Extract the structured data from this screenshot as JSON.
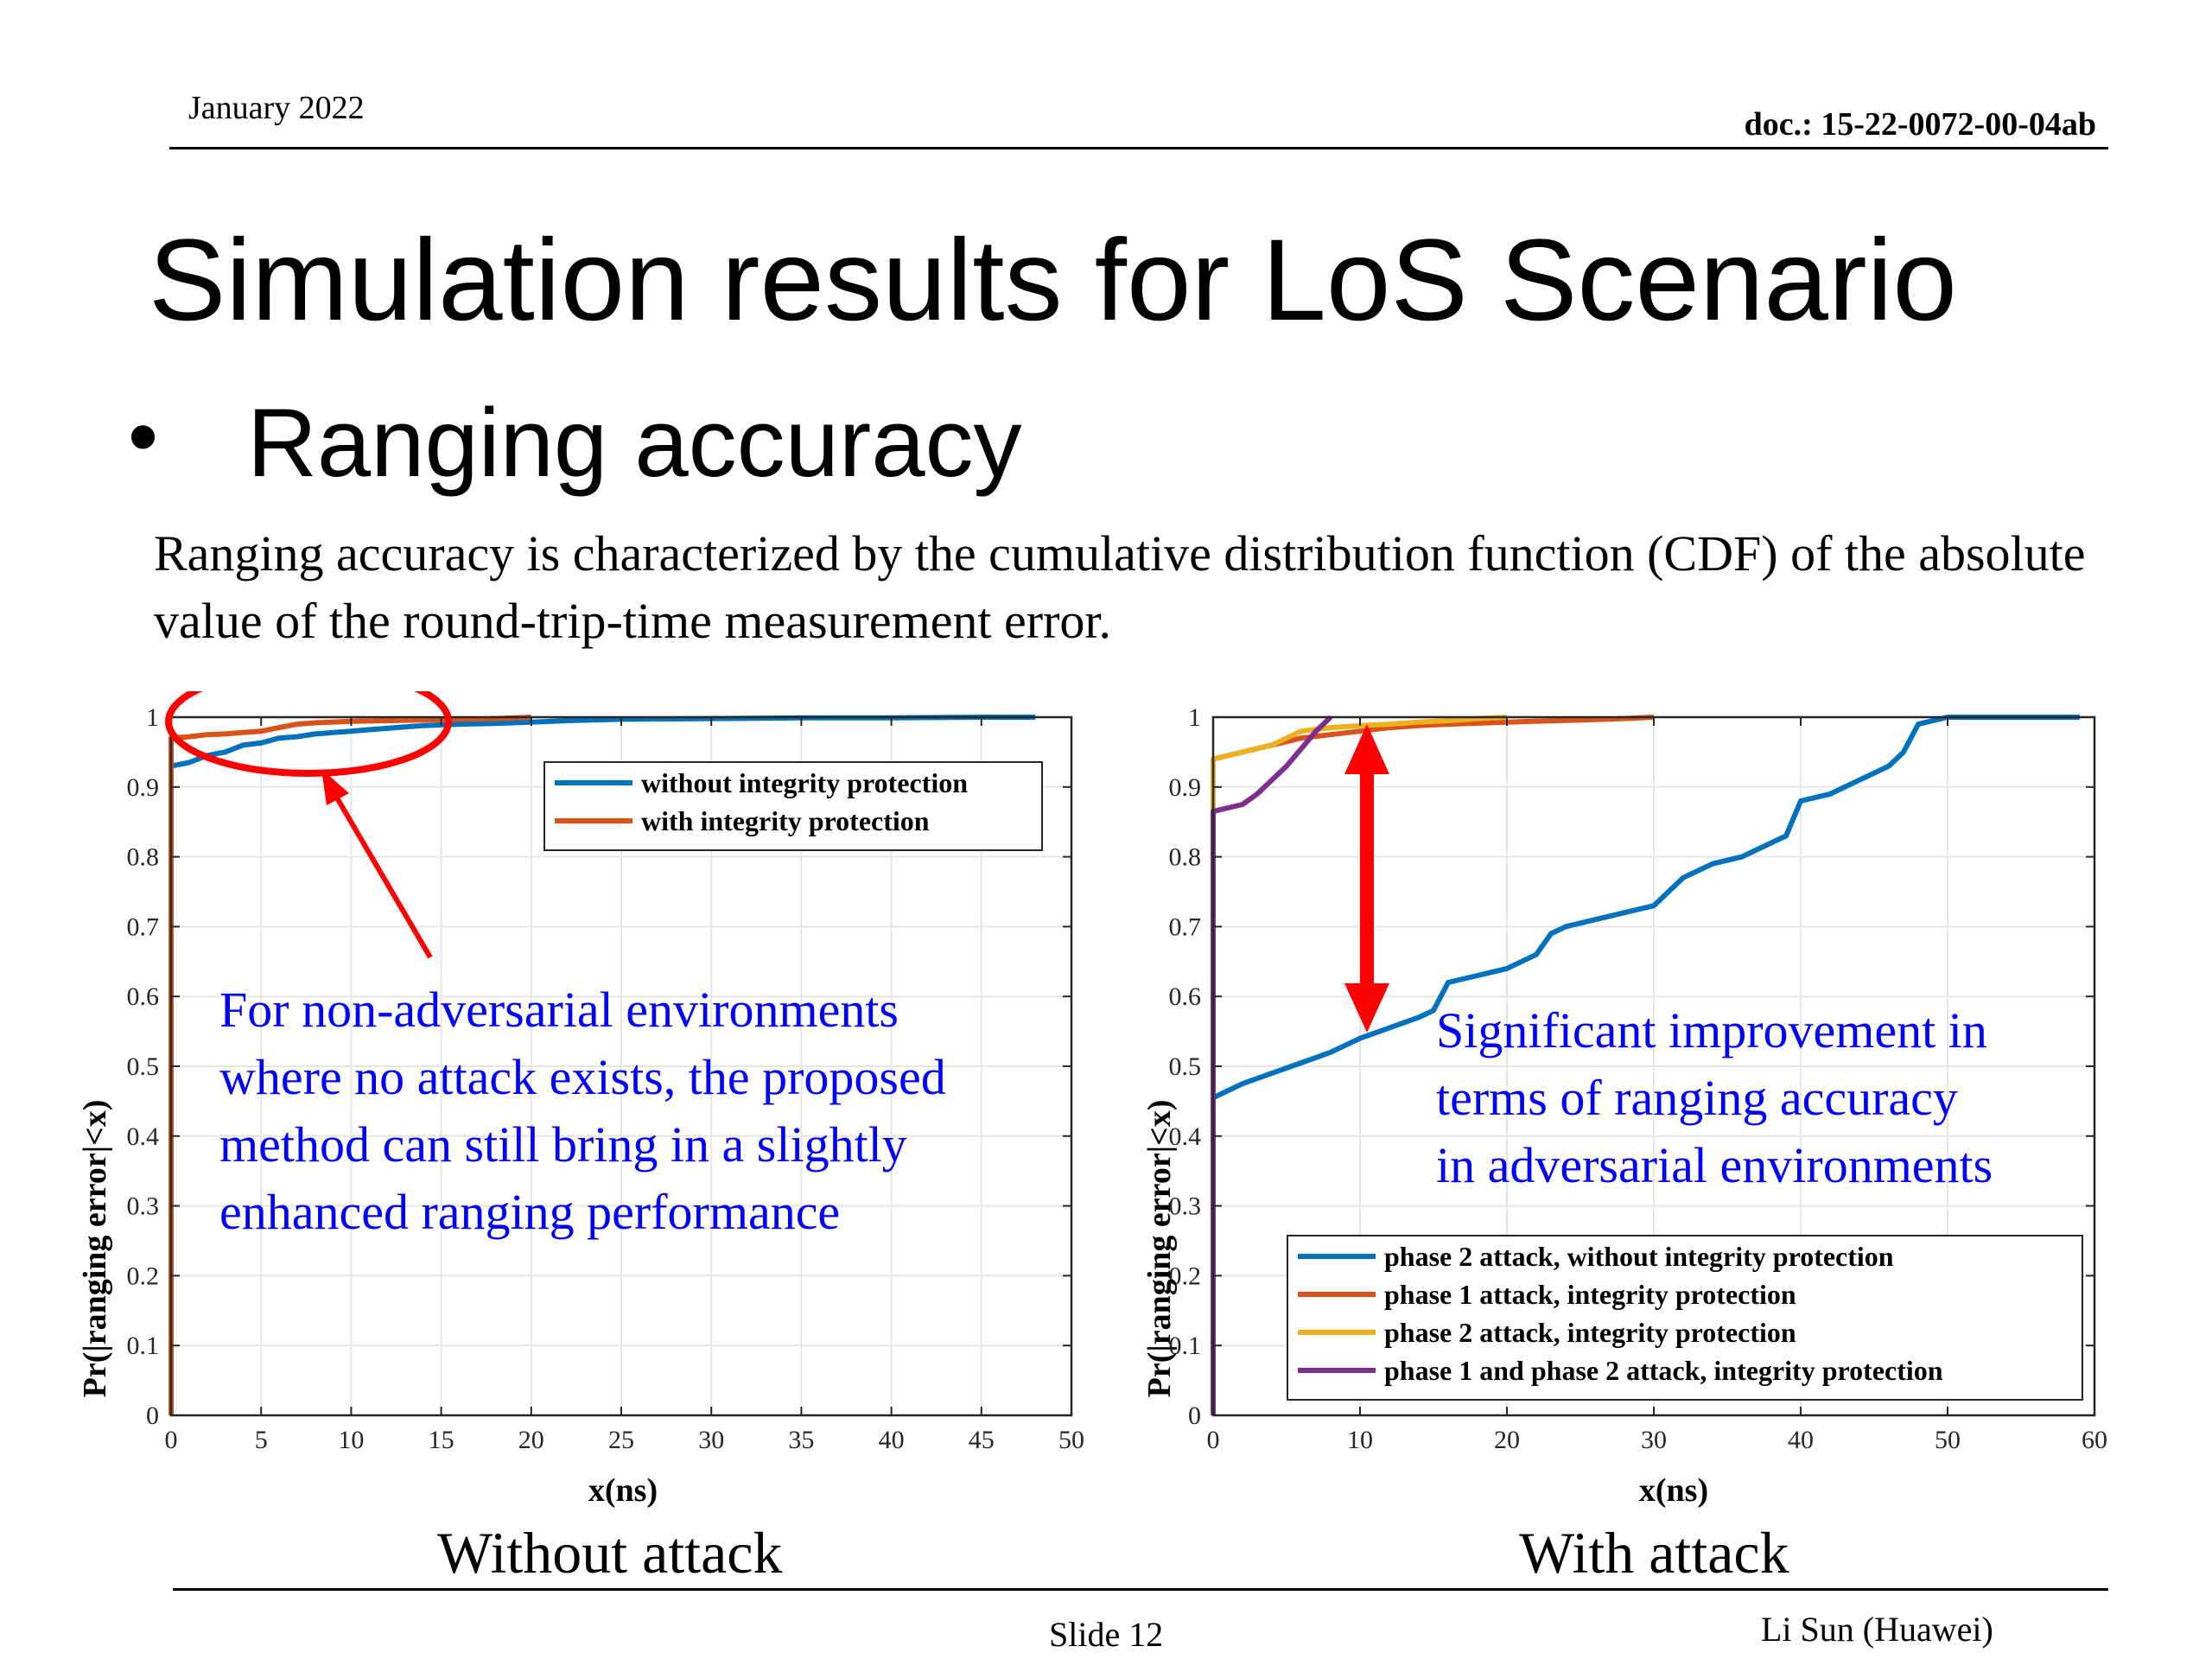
{
  "header": {
    "date": "January 2022",
    "doc": "doc.: 15-22-0072-00-04ab"
  },
  "title": "Simulation results for LoS Scenario",
  "bullet": "Ranging accuracy",
  "intro": "Ranging accuracy is characterized by the cumulative distribution function (CDF) of the absolute value of the round-trip-time measurement error.",
  "captions": {
    "left": "Without attack",
    "right": "With attack"
  },
  "footer": {
    "slide": "Slide 12",
    "author": "Li Sun (Huawei)"
  },
  "colors": {
    "blue": "#0072BD",
    "orange": "#D95319",
    "yellow": "#EDB120",
    "purple": "#7E2F8E",
    "annotation_text": "#0000FF",
    "annotation_marker": "#FF0000"
  },
  "chart_data": [
    {
      "type": "line",
      "xlabel": "x(ns)",
      "ylabel": "Pr(|ranging error|<x)",
      "xlim": [
        0,
        50
      ],
      "ylim": [
        0,
        1
      ],
      "xticks": [
        0,
        5,
        10,
        15,
        20,
        25,
        30,
        35,
        40,
        45,
        50
      ],
      "yticks": [
        0,
        0.1,
        0.2,
        0.3,
        0.4,
        0.5,
        0.6,
        0.7,
        0.8,
        0.9,
        1
      ],
      "grid": true,
      "legend_position": "top-right",
      "series": [
        {
          "name": "without integrity protection",
          "color": "#0072BD",
          "x": [
            0,
            1,
            2,
            3,
            4,
            5,
            6,
            7,
            8,
            9,
            10,
            11,
            12,
            13,
            14,
            15,
            16,
            18,
            20,
            22,
            25,
            30,
            35,
            40,
            45,
            48
          ],
          "y": [
            0.93,
            0.935,
            0.945,
            0.95,
            0.96,
            0.963,
            0.97,
            0.972,
            0.976,
            0.978,
            0.98,
            0.982,
            0.984,
            0.986,
            0.988,
            0.989,
            0.99,
            0.991,
            0.993,
            0.995,
            0.997,
            0.998,
            0.999,
            0.999,
            1.0,
            1.0
          ]
        },
        {
          "name": "with integrity protection",
          "color": "#D95319",
          "x": [
            0,
            0,
            1,
            2,
            3,
            4,
            5,
            6,
            7,
            8,
            10,
            12,
            14,
            16,
            18,
            20
          ],
          "y": [
            0,
            0.97,
            0.972,
            0.975,
            0.976,
            0.978,
            0.98,
            0.985,
            0.99,
            0.992,
            0.994,
            0.995,
            0.996,
            0.997,
            0.998,
            1.0
          ]
        }
      ],
      "annotations": {
        "text": "For non-adversarial environments where no attack exists, the proposed method can still bring in a slightly enhanced ranging performance"
      }
    },
    {
      "type": "line",
      "xlabel": "x(ns)",
      "ylabel": "Pr(|ranging error|<x)",
      "xlim": [
        0,
        60
      ],
      "ylim": [
        0,
        1
      ],
      "xticks": [
        0,
        10,
        20,
        30,
        40,
        50,
        60
      ],
      "yticks": [
        0,
        0.1,
        0.2,
        0.3,
        0.4,
        0.5,
        0.6,
        0.7,
        0.8,
        0.9,
        1
      ],
      "grid": true,
      "legend_position": "bottom-right",
      "series": [
        {
          "name": "phase 2 attack, without integrity protection",
          "color": "#0072BD",
          "x": [
            0,
            2,
            4,
            6,
            8,
            10,
            12,
            14,
            15,
            16,
            18,
            20,
            22,
            23,
            24,
            26,
            28,
            30,
            32,
            34,
            36,
            38,
            39,
            40,
            42,
            44,
            46,
            47,
            48,
            50,
            55,
            59
          ],
          "y": [
            0.455,
            0.475,
            0.49,
            0.505,
            0.52,
            0.54,
            0.555,
            0.57,
            0.58,
            0.62,
            0.63,
            0.64,
            0.66,
            0.69,
            0.7,
            0.71,
            0.72,
            0.73,
            0.77,
            0.79,
            0.8,
            0.82,
            0.83,
            0.88,
            0.89,
            0.91,
            0.93,
            0.95,
            0.99,
            1.0,
            1.0,
            1.0
          ]
        },
        {
          "name": "phase 1 attack, integrity protection",
          "color": "#D95319",
          "x": [
            0,
            0,
            2,
            4,
            6,
            8,
            10,
            12,
            14,
            16,
            20,
            25,
            28,
            30
          ],
          "y": [
            0,
            0.94,
            0.95,
            0.96,
            0.97,
            0.975,
            0.98,
            0.985,
            0.988,
            0.99,
            0.993,
            0.996,
            0.998,
            1.0
          ]
        },
        {
          "name": "phase 2 attack, integrity protection",
          "color": "#EDB120",
          "x": [
            0,
            0,
            1,
            2,
            3,
            4,
            5,
            6,
            8,
            10,
            12,
            14,
            16,
            18,
            20
          ],
          "y": [
            0,
            0.94,
            0.945,
            0.95,
            0.955,
            0.96,
            0.97,
            0.98,
            0.985,
            0.988,
            0.99,
            0.993,
            0.995,
            0.998,
            1.0
          ]
        },
        {
          "name": "phase 1 and phase 2 attack, integrity protection",
          "color": "#7E2F8E",
          "x": [
            0,
            0,
            1,
            2,
            3,
            4,
            5,
            6,
            7,
            8
          ],
          "y": [
            0,
            0.865,
            0.87,
            0.875,
            0.89,
            0.91,
            0.93,
            0.955,
            0.98,
            1.0
          ]
        }
      ],
      "annotations": {
        "text": "Significant improvement in terms of ranging accuracy in adversarial environments"
      }
    }
  ]
}
